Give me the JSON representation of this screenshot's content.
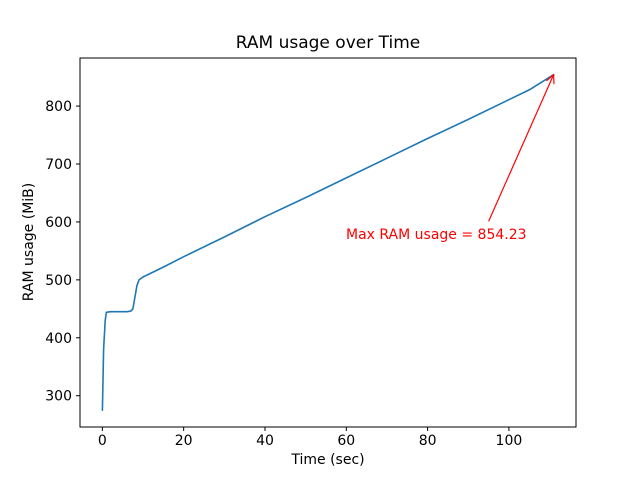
{
  "figure": {
    "background": "#ffffff"
  },
  "chart_data": {
    "type": "line",
    "title": "RAM usage over Time",
    "xlabel": "Time (sec)",
    "ylabel": "RAM usage (MiB)",
    "xlim": [
      -5.5,
      116.5
    ],
    "ylim": [
      246,
      883
    ],
    "xticks": [
      0,
      20,
      40,
      60,
      80,
      100
    ],
    "yticks": [
      300,
      400,
      500,
      600,
      700,
      800
    ],
    "grid": false,
    "legend": "none",
    "axes_color": "#000000",
    "series": [
      {
        "name": "RAM usage",
        "color": "#1f77b4",
        "x": [
          0,
          0.3,
          0.7,
          1,
          2,
          3,
          4,
          5,
          6,
          7,
          7.5,
          8,
          8.5,
          9,
          10,
          15,
          20,
          30,
          40,
          50,
          60,
          70,
          80,
          90,
          100,
          105,
          111
        ],
        "y": [
          275,
          380,
          430,
          444,
          445,
          445,
          445,
          445,
          445,
          446,
          450,
          470,
          490,
          500,
          505,
          522,
          540,
          574,
          609,
          642,
          676,
          710,
          744,
          777,
          811,
          828,
          854.23
        ]
      }
    ],
    "annotation": {
      "text": "Max RAM usage = 854.23",
      "color": "#ff0000",
      "text_x": 60,
      "text_y": 570,
      "arrow_start_x": 95,
      "arrow_start_y": 601,
      "arrow_tip_x": 111,
      "arrow_tip_y": 854.23
    }
  }
}
